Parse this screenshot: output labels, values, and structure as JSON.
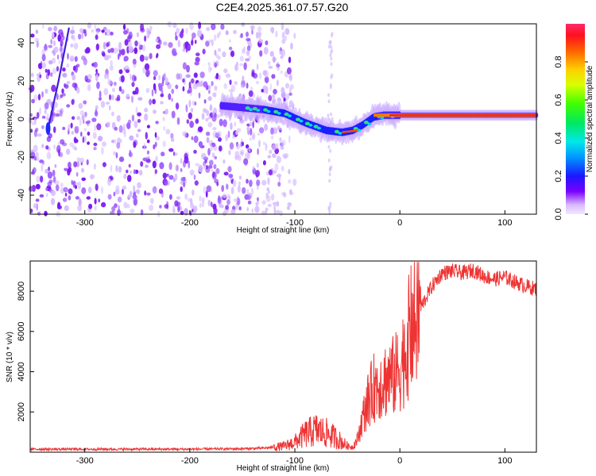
{
  "title": "C2E4.2025.361.07.57.G20",
  "chart_data": [
    {
      "type": "heatmap",
      "xlabel": "Height of straight line (km)",
      "ylabel": "Frequency (Hz)",
      "xlim": [
        -352,
        130
      ],
      "ylim": [
        -50,
        50
      ],
      "xticks": [
        -300,
        -200,
        -100,
        0,
        100
      ],
      "yticks": [
        -40,
        -20,
        0,
        20,
        40
      ],
      "colorbar": {
        "label": "Normalized spectral amplitude",
        "range": [
          0,
          1
        ],
        "ticks": [
          0.0,
          0.2,
          0.4,
          0.6,
          0.8
        ]
      },
      "ridge": {
        "description": "dominant frequency track",
        "x": [
          -170,
          -150,
          -130,
          -110,
          -90,
          -70,
          -55,
          -45,
          -35,
          -25,
          -15,
          0,
          20,
          50,
          90,
          130
        ],
        "y": [
          7,
          6,
          5,
          3,
          -2,
          -6,
          -7,
          -6,
          -3,
          1,
          2,
          2,
          2,
          2,
          2,
          2
        ]
      },
      "secondary_track": {
        "x": [
          -335,
          -325,
          -315
        ],
        "y": [
          -5,
          20,
          48
        ]
      },
      "noise_region_x": [
        -352,
        -120
      ]
    },
    {
      "type": "line",
      "xlabel": "Height of straight line (km)",
      "ylabel": "SNR (10 * v/v)",
      "xlim": [
        -352,
        130
      ],
      "ylim": [
        0,
        9500
      ],
      "xticks": [
        -300,
        -200,
        -100,
        0,
        100
      ],
      "yticks": [
        2000,
        4000,
        6000,
        8000
      ],
      "series": [
        {
          "name": "SNR",
          "color": "#ee3333",
          "x": [
            -352,
            -300,
            -200,
            -150,
            -130,
            -110,
            -100,
            -90,
            -80,
            -70,
            -60,
            -50,
            -45,
            -40,
            -35,
            -30,
            -25,
            -20,
            -15,
            -10,
            -5,
            0,
            5,
            10,
            20,
            30,
            40,
            50,
            60,
            70,
            80,
            90,
            100,
            110,
            120,
            130
          ],
          "y": [
            150,
            150,
            150,
            170,
            200,
            300,
            500,
            900,
            1100,
            950,
            700,
            300,
            250,
            700,
            1800,
            2600,
            3200,
            3400,
            3600,
            3700,
            3800,
            4200,
            5000,
            6000,
            7200,
            8200,
            8900,
            9000,
            8900,
            9050,
            8750,
            8600,
            8700,
            8450,
            8250,
            8100
          ]
        }
      ]
    }
  ],
  "colors": {
    "line": "#ee3333",
    "axes": "#000000",
    "background": "#ffffff"
  }
}
